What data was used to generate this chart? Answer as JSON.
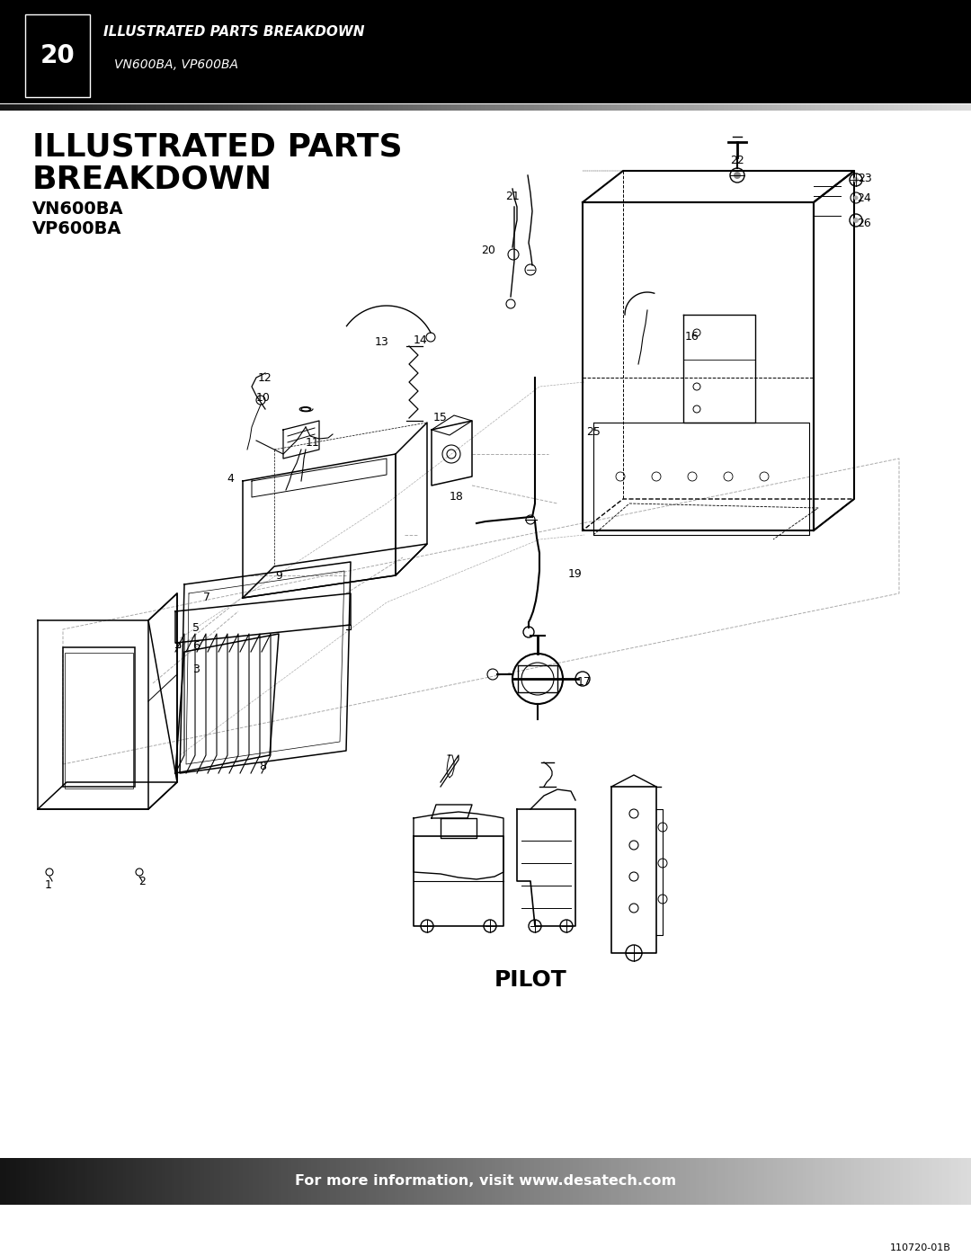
{
  "page_number": "20",
  "header_title_line1": "ILLUSTRATED PARTS BREAKDOWN",
  "header_subtitle": "VN600BA, VP600BA",
  "section_title_line1": "ILLUSTRATED PARTS",
  "section_title_line2": "BREAKDOWN",
  "model_line1": "VN600BA",
  "model_line2": "VP600BA",
  "pilot_label": "PILOT",
  "footer_text": "For more information, visit www.desatech.com",
  "doc_number": "110720-01B",
  "bg_color": "#ffffff",
  "header_bg": "#000000",
  "body_text_color": "#000000",
  "line_color": "#000000",
  "dashed_color": "#888888"
}
